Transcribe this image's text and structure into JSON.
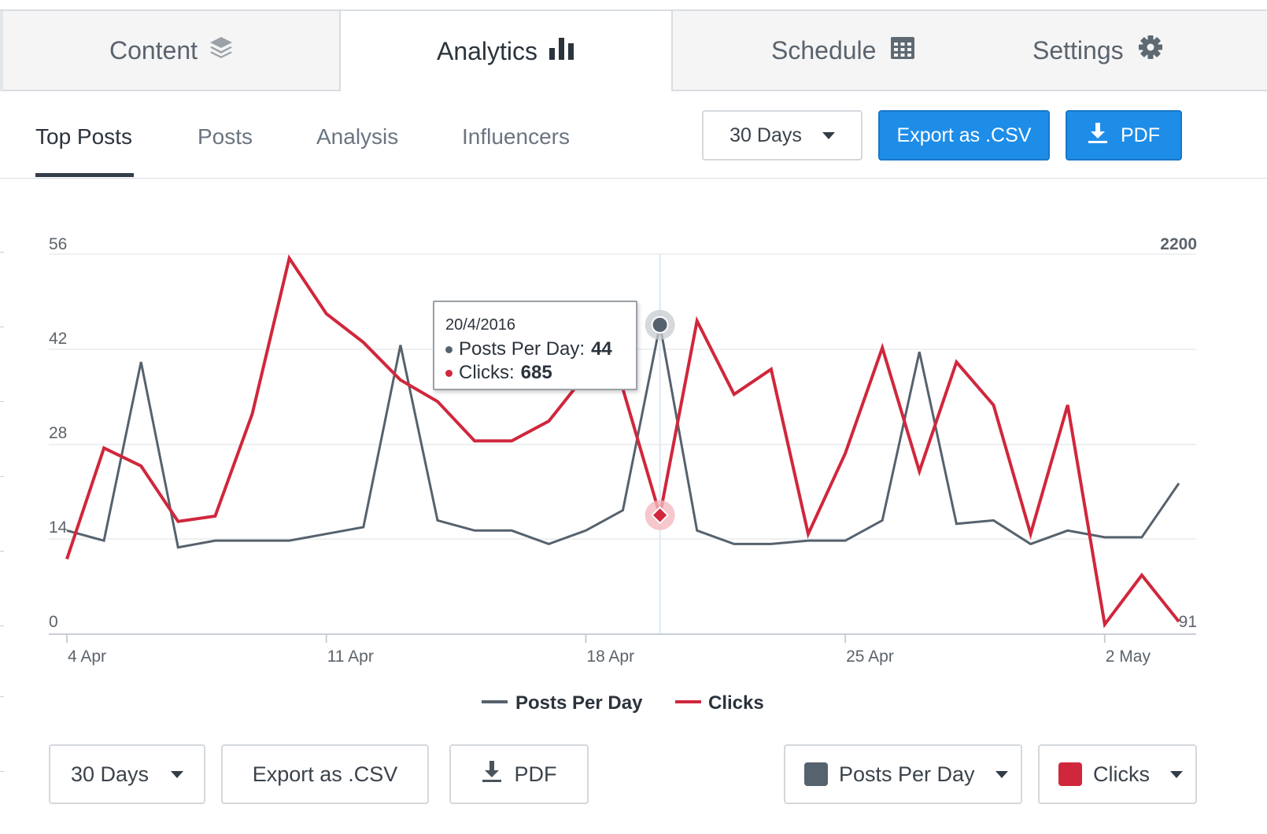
{
  "tabs": [
    {
      "label": "Content",
      "icon": "layers-icon"
    },
    {
      "label": "Analytics",
      "icon": "bar-chart-icon"
    },
    {
      "label": "Schedule",
      "icon": "calendar-icon"
    },
    {
      "label": "Settings",
      "icon": "gear-icon"
    }
  ],
  "subnav": {
    "items": [
      "Top Posts",
      "Posts",
      "Analysis",
      "Influencers"
    ],
    "active": "Top Posts"
  },
  "toolbar": {
    "range_label": "30 Days",
    "export_csv_label": "Export as .CSV",
    "pdf_label": "PDF"
  },
  "tooltip": {
    "date": "20/4/2016",
    "posts_label": "Posts Per Day:",
    "posts_value": "44",
    "clicks_label": "Clicks:",
    "clicks_value": "685"
  },
  "colors": {
    "posts_series": "#56626d",
    "clicks_series": "#d0273c",
    "primary_button": "#1e8de8"
  },
  "chart_data": {
    "type": "line",
    "x": [
      "2016-04-04",
      "2016-04-05",
      "2016-04-06",
      "2016-04-07",
      "2016-04-08",
      "2016-04-09",
      "2016-04-10",
      "2016-04-11",
      "2016-04-12",
      "2016-04-13",
      "2016-04-14",
      "2016-04-15",
      "2016-04-16",
      "2016-04-17",
      "2016-04-18",
      "2016-04-19",
      "2016-04-20",
      "2016-04-21",
      "2016-04-22",
      "2016-04-23",
      "2016-04-24",
      "2016-04-25",
      "2016-04-26",
      "2016-04-27",
      "2016-04-28",
      "2016-04-29",
      "2016-04-30",
      "2016-05-01",
      "2016-05-02",
      "2016-05-03",
      "2016-05-04"
    ],
    "x_tick_labels": [
      "4 Apr",
      "11 Apr",
      "18 Apr",
      "25 Apr",
      "2 May"
    ],
    "y_left_ticks": [
      "0",
      "14",
      "28",
      "42",
      "56"
    ],
    "y_right_top_label": "2200",
    "y_right_bottom_label": "91",
    "ylim_left": [
      0,
      56
    ],
    "ylim_right": [
      91,
      2200
    ],
    "series": [
      {
        "name": "Posts Per Day",
        "axis": "left",
        "values": [
          13.5,
          12,
          38.5,
          11,
          12,
          12,
          12,
          13,
          14,
          41,
          15,
          13.5,
          13.5,
          11.5,
          13.5,
          16.5,
          44,
          13.5,
          11.5,
          11.5,
          12,
          12,
          15,
          40,
          14.5,
          15,
          11.5,
          13.5,
          12.5,
          12.5,
          20.5
        ]
      },
      {
        "name": "Clicks",
        "axis": "right",
        "values": [
          440,
          1060,
          960,
          650,
          680,
          1250,
          2120,
          1810,
          1650,
          1440,
          1320,
          1100,
          1100,
          1210,
          1470,
          1390,
          685,
          1770,
          1360,
          1500,
          580,
          1030,
          1620,
          930,
          1540,
          1300,
          580,
          1300,
          75,
          350,
          91
        ]
      }
    ],
    "grid": true,
    "crosshair_date": "2016-04-20",
    "legend_position": "bottom-center"
  },
  "bottom": {
    "range_label": "30 Days",
    "export_csv_label": "Export as .CSV",
    "pdf_label": "PDF",
    "series1_label": "Posts Per Day",
    "series2_label": "Clicks"
  }
}
